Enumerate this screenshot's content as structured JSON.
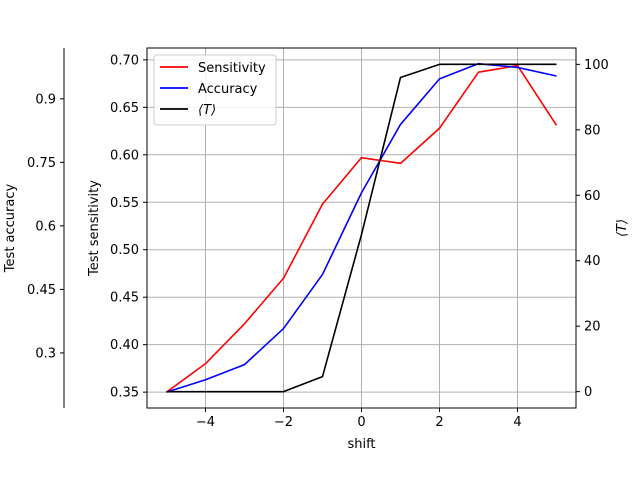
{
  "chart_data": {
    "type": "line",
    "x": [
      -5,
      -4,
      -3,
      -2,
      -1,
      0,
      1,
      2,
      3,
      4,
      5
    ],
    "xlabel": "shift",
    "xlim": [
      -5.5,
      5.5
    ],
    "xticks": [
      -4,
      -2,
      0,
      2,
      4
    ],
    "xtick_labels": [
      "−4",
      "−2",
      "0",
      "2",
      "4"
    ],
    "grid": true,
    "legend_position": "top-left",
    "axes": {
      "sensitivity": {
        "label": "Test sensitivity",
        "ylim": [
          0.3333,
          0.7125
        ],
        "ticks": [
          0.35,
          0.4,
          0.45,
          0.5,
          0.55,
          0.6,
          0.65,
          0.7
        ],
        "tick_labels": [
          "0.35",
          "0.40",
          "0.45",
          "0.50",
          "0.55",
          "0.60",
          "0.65",
          "0.70"
        ]
      },
      "accuracy": {
        "label": "Test accuracy",
        "ylim": [
          0.17,
          1.02
        ],
        "ticks": [
          0.3,
          0.45,
          0.6,
          0.75,
          0.9
        ],
        "tick_labels": [
          "0.3",
          "0.45",
          "0.6",
          "0.75",
          "0.9"
        ]
      },
      "temperature": {
        "label": "⟨T⟩",
        "ylim": [
          -5,
          105
        ],
        "ticks": [
          0,
          20,
          40,
          60,
          80,
          100
        ],
        "tick_labels": [
          "0",
          "20",
          "40",
          "60",
          "80",
          "100"
        ]
      }
    },
    "series": [
      {
        "name": "Sensitivity",
        "axis": "sensitivity",
        "color": "#ff0000",
        "values": [
          0.35,
          0.38,
          0.422,
          0.47,
          0.548,
          0.597,
          0.591,
          0.628,
          0.687,
          0.694,
          0.631
        ]
      },
      {
        "name": "Accuracy",
        "axis": "sensitivity",
        "color": "#0000ff",
        "values": [
          0.35,
          0.363,
          0.379,
          0.417,
          0.474,
          0.56,
          0.632,
          0.68,
          0.696,
          0.692,
          0.683
        ]
      },
      {
        "name": "⟨T⟩",
        "axis": "temperature",
        "color": "#000000",
        "values": [
          0,
          0,
          0,
          0,
          4.6,
          48,
          96,
          100,
          100,
          100,
          100
        ]
      }
    ]
  }
}
